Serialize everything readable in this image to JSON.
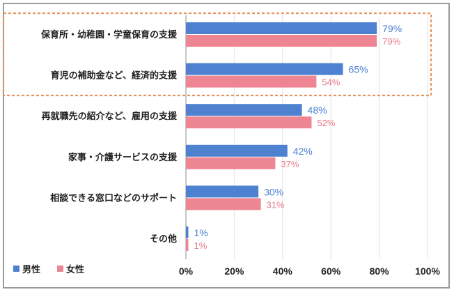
{
  "chart_data": {
    "type": "bar",
    "orientation": "horizontal",
    "categories": [
      "保育所・幼稚園・学童保育の支援",
      "育児の補助金など、経済的支援",
      "再就職先の紹介など、雇用の支援",
      "家事・介護サービスの支援",
      "相談できる窓口などのサポート",
      "その他"
    ],
    "series": [
      {
        "name": "男性",
        "values": [
          79,
          65,
          48,
          42,
          30,
          1
        ],
        "labels": [
          "79%",
          "65%",
          "48%",
          "42%",
          "30%",
          "1%"
        ],
        "color": "#4e81cf"
      },
      {
        "name": "女性",
        "values": [
          79,
          54,
          52,
          37,
          31,
          1
        ],
        "labels": [
          "79%",
          "54%",
          "52%",
          "37%",
          "31%",
          "1%"
        ],
        "color": "#ee8593"
      }
    ],
    "xlim": [
      0,
      100
    ],
    "x_ticks": [
      "0%",
      "20%",
      "40%",
      "60%",
      "80%",
      "100%"
    ],
    "grid": true,
    "legend": "bottom-left",
    "highlight": {
      "categories": [
        0,
        1
      ],
      "style": "orange dashed box"
    }
  }
}
